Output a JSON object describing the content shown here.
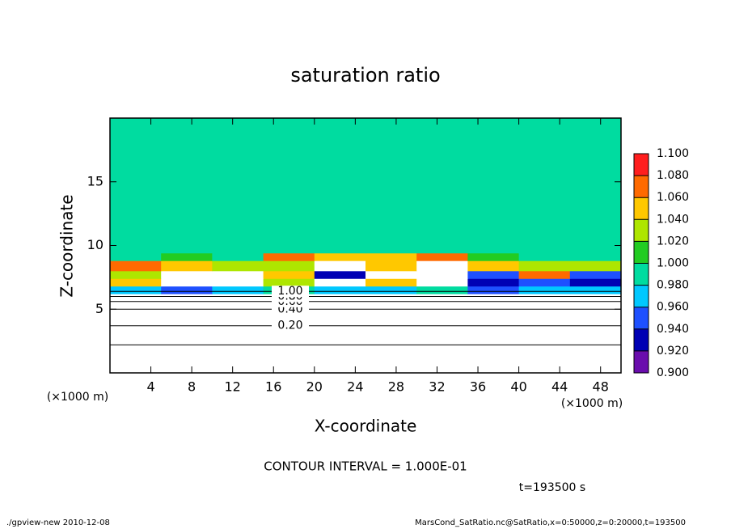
{
  "chart_data": {
    "type": "heatmap",
    "title": "saturation ratio",
    "xlabel": "X-coordinate",
    "ylabel": "Z-coordinate",
    "x_unit": "(×1000 m)",
    "y_unit": "(×1000 m)",
    "xlim": [
      0,
      50
    ],
    "ylim": [
      0,
      20
    ],
    "xticks": [
      4,
      8,
      12,
      16,
      20,
      24,
      28,
      32,
      36,
      40,
      44,
      48
    ],
    "yticks": [
      5,
      10,
      15
    ],
    "x_edges": [
      0,
      5,
      10,
      15,
      20,
      25,
      30,
      35,
      40,
      45,
      50
    ],
    "y_edges": [
      0,
      6.2,
      6.8,
      7.4,
      8.0,
      8.8,
      9.4,
      20
    ],
    "z": [
      [
        0.5,
        0.5,
        0.5,
        0.5,
        0.5,
        0.5,
        0.5,
        0.5,
        0.5,
        0.5
      ],
      [
        0.97,
        0.95,
        0.97,
        0.98,
        0.96,
        0.97,
        0.98,
        0.95,
        0.96,
        0.97
      ],
      [
        1.05,
        0.85,
        0.85,
        1.03,
        0.85,
        1.05,
        0.85,
        0.92,
        0.94,
        0.93
      ],
      [
        1.03,
        0.85,
        0.85,
        1.05,
        0.93,
        0.85,
        0.85,
        0.95,
        1.06,
        0.94
      ],
      [
        1.07,
        1.05,
        1.03,
        1.02,
        0.85,
        1.04,
        0.85,
        1.05,
        1.02,
        1.03
      ],
      [
        0.99,
        1.01,
        0.99,
        1.06,
        1.05,
        1.04,
        1.07,
        1.01,
        0.99,
        0.99
      ],
      [
        0.99,
        0.99,
        0.99,
        0.99,
        0.99,
        0.99,
        0.99,
        0.99,
        0.99,
        0.99
      ]
    ],
    "contours": [
      {
        "z": 2.2
      },
      {
        "z": 3.7,
        "label": "0.20"
      },
      {
        "z": 5.0,
        "label": "0.40"
      },
      {
        "z": 5.6,
        "label": "0.60"
      },
      {
        "z": 6.0,
        "label": "0.80"
      },
      {
        "z": 6.4,
        "label": "1.00"
      }
    ],
    "colorbar": {
      "levels": [
        {
          "value": 0.9,
          "label": "0.900"
        },
        {
          "value": 0.92,
          "label": "0.920"
        },
        {
          "value": 0.94,
          "label": "0.940"
        },
        {
          "value": 0.96,
          "label": "0.960"
        },
        {
          "value": 0.98,
          "label": "0.980"
        },
        {
          "value": 1.0,
          "label": "1.000"
        },
        {
          "value": 1.02,
          "label": "1.020"
        },
        {
          "value": 1.04,
          "label": "1.040"
        },
        {
          "value": 1.06,
          "label": "1.060"
        },
        {
          "value": 1.08,
          "label": "1.080"
        },
        {
          "value": 1.1,
          "label": "1.100"
        }
      ],
      "colors": [
        "#6a0dad",
        "#0000b4",
        "#1e50ff",
        "#00c8ff",
        "#00dca0",
        "#22cc22",
        "#aee600",
        "#ffc800",
        "#ff6a00",
        "#ff1e1e",
        "#ff8a8a"
      ],
      "below_color": "#ffffff"
    },
    "contour_interval": "CONTOUR INTERVAL = 1.000E-01",
    "time": "t=193500 s",
    "footer_left": "./gpview-new  2010-12-08",
    "footer_right": "MarsCond_SatRatio.nc@SatRatio,x=0:50000,z=0:20000,t=193500"
  }
}
